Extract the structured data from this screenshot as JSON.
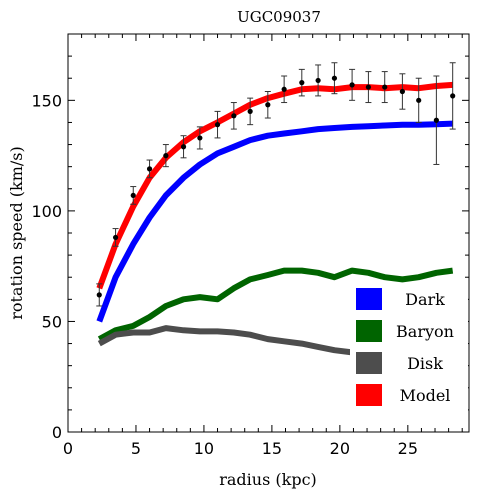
{
  "chart_data": {
    "type": "line",
    "title": "UGC09037",
    "xlabel": "radius (kpc)",
    "ylabel": "rotation speed (km/s)",
    "xlim": [
      0,
      29.5
    ],
    "ylim": [
      0,
      180
    ],
    "xticks": [
      0,
      5,
      10,
      15,
      20,
      25
    ],
    "yticks": [
      0,
      50,
      100,
      150
    ],
    "grid": false,
    "legend_position": "bottom-right",
    "series": [
      {
        "name": "Dark",
        "color": "#0000ff",
        "x": [
          2.3,
          3.5,
          4.8,
          6.0,
          7.2,
          8.5,
          9.7,
          11.0,
          12.2,
          13.4,
          14.7,
          15.9,
          17.2,
          18.4,
          19.6,
          20.9,
          22.1,
          23.3,
          24.6,
          25.8,
          27.1,
          28.3
        ],
        "y": [
          50,
          70,
          85,
          97,
          107,
          115,
          121,
          126,
          129,
          132,
          134,
          135,
          136,
          137,
          137.5,
          138,
          138.3,
          138.6,
          139,
          139,
          139.2,
          139.5
        ]
      },
      {
        "name": "Baryon",
        "color": "#006400",
        "x": [
          2.3,
          3.5,
          4.8,
          6.0,
          7.2,
          8.5,
          9.7,
          11.0,
          12.2,
          13.4,
          14.7,
          15.9,
          17.2,
          18.4,
          19.6,
          20.9,
          22.1,
          23.3,
          24.6,
          25.8,
          27.1,
          28.3
        ],
        "y": [
          42,
          46,
          48,
          52,
          57,
          60,
          61,
          60,
          65,
          69,
          71,
          73,
          73,
          72,
          70,
          73,
          72,
          70,
          69,
          70,
          72,
          73
        ]
      },
      {
        "name": "Disk",
        "color": "#4d4d4d",
        "x": [
          2.3,
          3.5,
          4.8,
          6.0,
          7.2,
          8.5,
          9.7,
          11.0,
          12.2,
          13.4,
          14.7,
          15.9,
          17.2,
          18.4,
          19.6,
          20.9,
          22.1,
          23.3,
          24.6,
          25.8,
          27.1,
          28.3
        ],
        "y": [
          40,
          44,
          45,
          45,
          47,
          46,
          45.5,
          45.5,
          45,
          44,
          42,
          41,
          40,
          38.5,
          37,
          36,
          35,
          34,
          33,
          32,
          31,
          30
        ]
      },
      {
        "name": "Model",
        "color": "#ff0000",
        "x": [
          2.3,
          3.5,
          4.8,
          6.0,
          7.2,
          8.5,
          9.7,
          11.0,
          12.2,
          13.4,
          14.7,
          15.9,
          17.2,
          18.4,
          19.6,
          20.9,
          22.1,
          23.3,
          24.6,
          25.8,
          27.1,
          28.3
        ],
        "y": [
          65,
          85,
          102,
          115,
          124,
          131,
          136,
          140,
          144,
          148,
          151,
          153,
          155,
          155.5,
          155,
          156,
          156,
          155.5,
          156,
          155.5,
          156.5,
          157
        ]
      }
    ],
    "observations": {
      "name": "data",
      "x": [
        2.3,
        3.5,
        4.8,
        6.0,
        7.2,
        8.5,
        9.7,
        11.0,
        12.2,
        13.4,
        14.7,
        15.9,
        17.2,
        18.4,
        19.6,
        20.9,
        22.1,
        23.3,
        24.6,
        25.8,
        27.1,
        28.3
      ],
      "y": [
        62,
        88,
        107,
        119,
        125,
        129,
        133,
        139,
        143,
        145,
        148,
        155,
        158,
        159,
        160,
        157,
        156,
        156,
        154,
        150,
        141,
        152
      ],
      "err": [
        5,
        4,
        4,
        4,
        5,
        5,
        5,
        6,
        6,
        6,
        6,
        6,
        6,
        7,
        7,
        7,
        7,
        7,
        8,
        10,
        20,
        15
      ]
    }
  }
}
